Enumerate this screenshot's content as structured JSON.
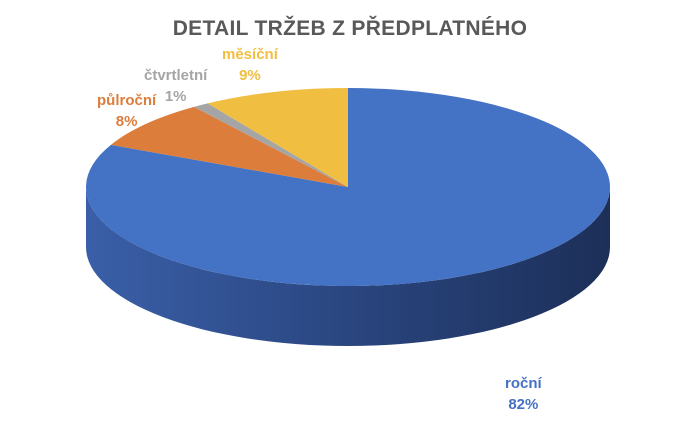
{
  "chart_data": {
    "type": "pie",
    "title": "DETAIL TRŽEB Z PŘEDPLATNÉHO",
    "style": "3d",
    "slices": [
      {
        "label": "roční",
        "value": 82,
        "value_label": "82%",
        "color": "#4472C4"
      },
      {
        "label": "půlroční",
        "value": 8,
        "value_label": "8%",
        "color": "#DC7D3C"
      },
      {
        "label": "čtvrtletní",
        "value": 1,
        "value_label": "1%",
        "color": "#A5A5A5"
      },
      {
        "label": "měsíční",
        "value": 9,
        "value_label": "9%",
        "color": "#F0BE41"
      }
    ]
  }
}
